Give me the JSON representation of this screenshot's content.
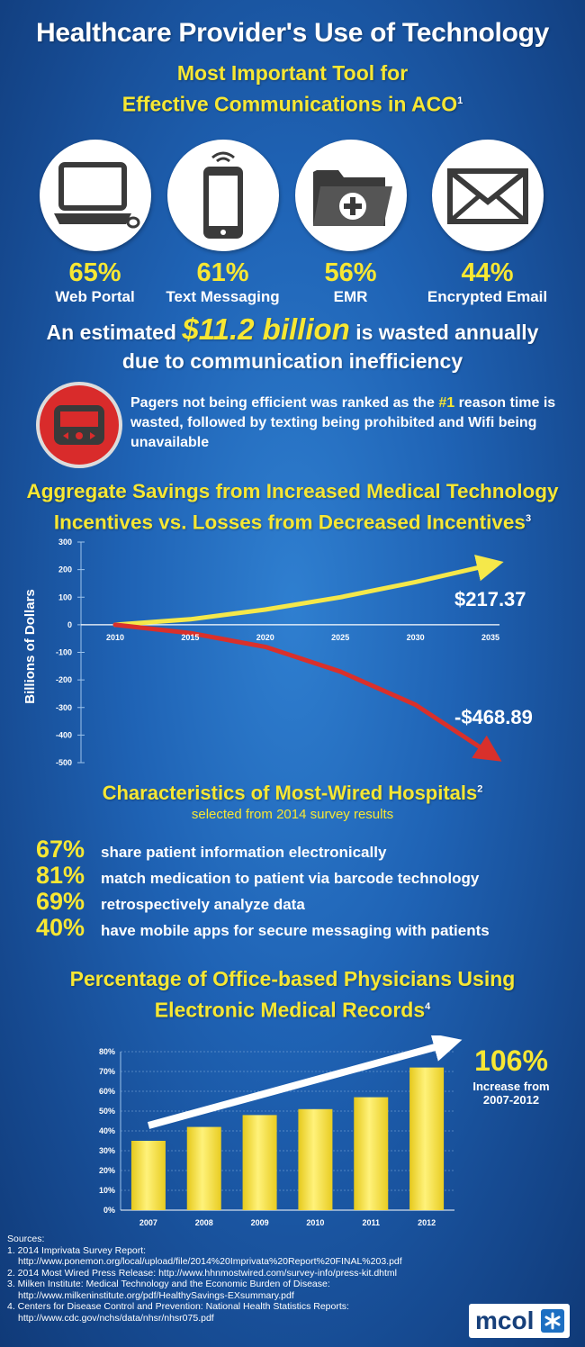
{
  "header": {
    "title": "Healthcare Provider's Use of Technology",
    "subtitle_line1": "Most Important Tool for",
    "subtitle_line2": "Effective Communications in ACO",
    "subtitle_sup": "1"
  },
  "tools": [
    {
      "percent": "65%",
      "label": "Web Portal",
      "icon": "laptop-icon"
    },
    {
      "percent": "61%",
      "label": "Text Messaging",
      "icon": "phone-icon"
    },
    {
      "percent": "56%",
      "label": "EMR",
      "icon": "folder-icon"
    },
    {
      "percent": "44%",
      "label": "Encrypted Email",
      "icon": "envelope-icon"
    }
  ],
  "wasted": {
    "pre": "An estimated",
    "amount": "$11.2 billion",
    "post": "is wasted annually",
    "line2": "due to communication inefficiency"
  },
  "pagers": {
    "icon": "pager-icon",
    "text_pre": "Pagers not being efficient was ranked as the",
    "rank": "#1",
    "text_post": "reason time is wasted, followed by texting being prohibited and Wifi being unavailable"
  },
  "savings_heading": {
    "line1": "Aggregate Savings from Increased Medical Technology",
    "line2": "Incentives vs. Losses from Decreased Incentives",
    "sup": "3"
  },
  "wired": {
    "title": "Characteristics of Most-Wired Hospitals",
    "sup": "2",
    "subtitle": "selected from 2014 survey results",
    "items": [
      {
        "percent": "67%",
        "text": "share patient information electronically"
      },
      {
        "percent": "81%",
        "text": "match medication to patient via barcode technology"
      },
      {
        "percent": "69%",
        "text": "retrospectively analyze data"
      },
      {
        "percent": "40%",
        "text": "have mobile apps for secure messaging with patients"
      }
    ]
  },
  "emr_heading": {
    "line1": "Percentage of Office-based Physicians Using",
    "line2": "Electronic Medical Records",
    "sup": "4"
  },
  "emr_callout": {
    "value": "106%",
    "line1": "Increase from",
    "line2": "2007-2012"
  },
  "sources": {
    "title": "Sources:",
    "items": [
      {
        "n": "1. 2014 Imprivata Survey Report:",
        "url": "http://www.ponemon.org/local/upload/file/2014%20Imprivata%20Report%20FINAL%203.pdf"
      },
      {
        "n": "2. 2014 Most Wired Press Release: http://www.hhnmostwired.com/survey-info/press-kit.dhtml",
        "url": ""
      },
      {
        "n": "3. Milken Institute: Medical Technology and the Economic Burden of Disease:",
        "url": "http://www.milkeninstitute.org/pdf/HealthySavings-EXsummary.pdf"
      },
      {
        "n": "4. Centers for Disease Control and Prevention: National Health Statistics Reports:",
        "url": "http://www.cdc.gov/nchs/data/nhsr/nhsr075.pdf"
      }
    ]
  },
  "logo": {
    "text": "mcol"
  },
  "colors": {
    "accent": "#f7e733",
    "gain": "#f5e84a",
    "loss": "#d9302b",
    "background": "#1f63b5"
  },
  "chart_data": [
    {
      "type": "line",
      "title": "Aggregate Savings from Increased Medical Technology Incentives vs. Losses from Decreased Incentives",
      "xlabel": "",
      "ylabel": "Billions of Dollars",
      "x_ticks": [
        2010,
        2015,
        2020,
        2025,
        2030,
        2035
      ],
      "y_ticks": [
        300,
        200,
        100,
        0,
        -100,
        -200,
        -300,
        -400,
        -500
      ],
      "xlim": [
        2010,
        2035
      ],
      "ylim": [
        -500,
        300
      ],
      "series": [
        {
          "name": "Increased incentives",
          "x": [
            2010,
            2015,
            2020,
            2025,
            2030,
            2035
          ],
          "y": [
            0,
            20,
            55,
            100,
            155,
            217.37
          ],
          "label": "$217.37"
        },
        {
          "name": "Decreased incentives",
          "x": [
            2010,
            2015,
            2020,
            2025,
            2030,
            2035
          ],
          "y": [
            0,
            -30,
            -80,
            -170,
            -290,
            -468.89
          ],
          "label": "-$468.89"
        }
      ]
    },
    {
      "type": "bar",
      "title": "Percentage of Office-based Physicians Using Electronic Medical Records",
      "xlabel": "",
      "ylabel": "",
      "categories": [
        "2007",
        "2008",
        "2009",
        "2010",
        "2011",
        "2012"
      ],
      "values": [
        35,
        42,
        48,
        51,
        57,
        72
      ],
      "y_ticks": [
        "0%",
        "10%",
        "20%",
        "30%",
        "40%",
        "50%",
        "60%",
        "70%",
        "80%"
      ],
      "ylim": [
        0,
        80
      ]
    }
  ]
}
